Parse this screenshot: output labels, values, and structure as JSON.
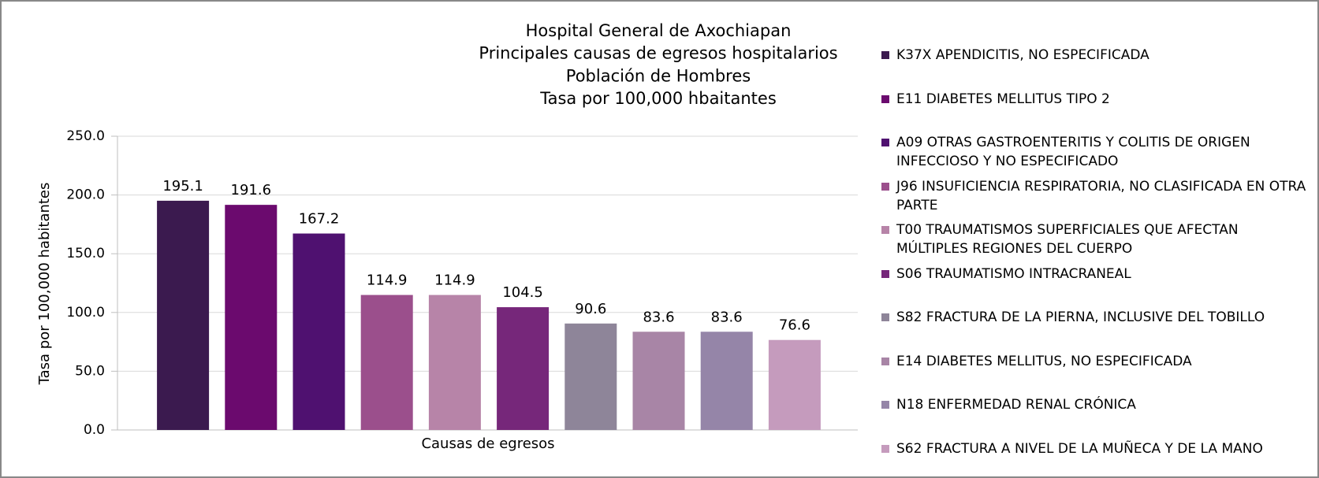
{
  "chart_data": {
    "type": "bar",
    "title": [
      "Hospital General de Axochiapan",
      "Principales causas de egresos hospitalarios",
      "Población de  Hombres",
      "Tasa por 100,000 hbaitantes"
    ],
    "x_label": "Causas de egresos",
    "y_label": "Tasa por 100,000 habitantes",
    "categories": [
      null
    ],
    "series": [
      {
        "name": "K37X APENDICITIS, NO ESPECIFICADA",
        "color": "#3b1a4f",
        "values": [
          195.1
        ]
      },
      {
        "name": "E11 DIABETES MELLITUS TIPO 2",
        "color": "#6b0a6e",
        "values": [
          191.6
        ]
      },
      {
        "name": "A09 OTRAS GASTROENTERITIS Y COLITIS DE ORIGEN INFECCIOSO Y NO ESPECIFICADO",
        "color": "#4f1170",
        "values": [
          167.2
        ]
      },
      {
        "name": "J96 INSUFICIENCIA RESPIRATORIA, NO CLASIFICADA EN OTRA PARTE",
        "color": "#9b4f8c",
        "values": [
          114.9
        ]
      },
      {
        "name": "T00 TRAUMATISMOS SUPERFICIALES QUE AFECTAN MÚLTIPLES REGIONES DEL CUERPO",
        "color": "#b784a8",
        "values": [
          114.9
        ]
      },
      {
        "name": "S06 TRAUMATISMO INTRACRANEAL",
        "color": "#76277a",
        "values": [
          104.5
        ]
      },
      {
        "name": "S82 FRACTURA DE LA PIERNA, INCLUSIVE DEL TOBILLO",
        "color": "#8e8599",
        "values": [
          90.6
        ]
      },
      {
        "name": "E14 DIABETES MELLITUS, NO ESPECIFICADA",
        "color": "#a885a6",
        "values": [
          83.6
        ]
      },
      {
        "name": "N18 ENFERMEDAD RENAL CRÓNICA",
        "color": "#9585a8",
        "values": [
          83.6
        ]
      },
      {
        "name": "S62 FRACTURA A NIVEL DE LA MUÑECA Y DE LA MANO",
        "color": "#c59bbd",
        "values": [
          76.6
        ]
      }
    ],
    "ylim": [
      0,
      250
    ],
    "yticks": [
      {
        "value": 0,
        "label": "0.0"
      },
      {
        "value": 50,
        "label": "50.0"
      },
      {
        "value": 100,
        "label": "100.0"
      },
      {
        "value": 150,
        "label": "150.0"
      },
      {
        "value": 200,
        "label": "200.0"
      },
      {
        "value": 250,
        "label": "250.0"
      }
    ],
    "grid": true,
    "legend": "right"
  }
}
